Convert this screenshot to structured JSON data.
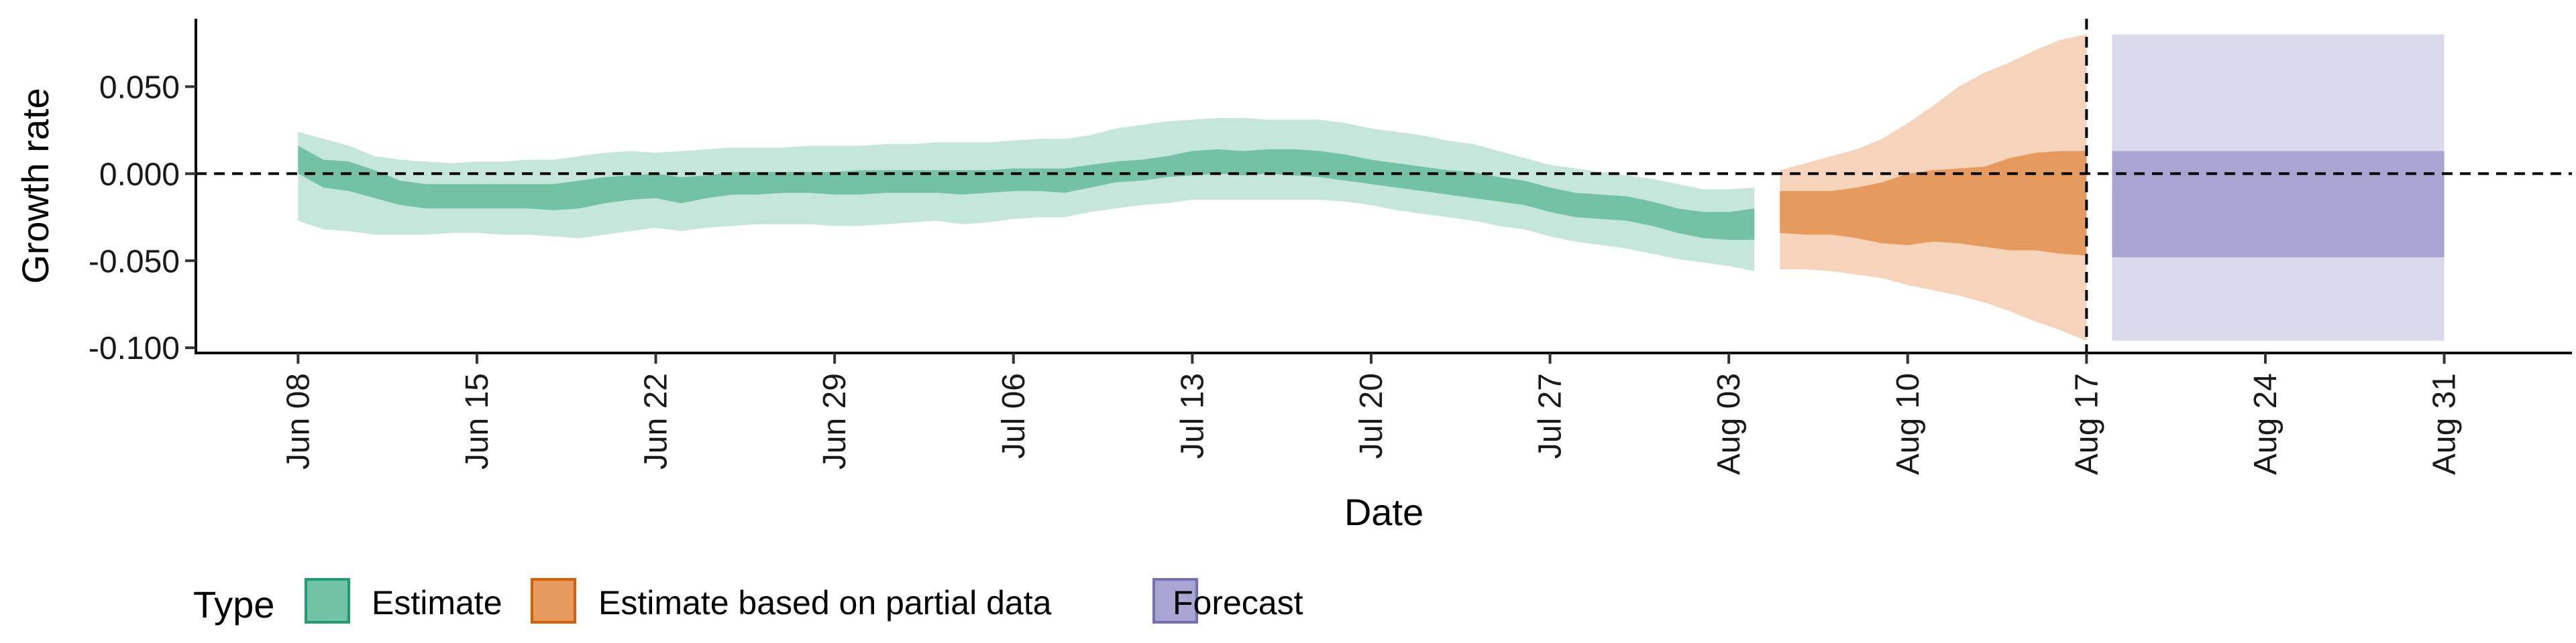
{
  "chart_data": {
    "type": "area",
    "xlabel": "Date",
    "ylabel": "Growth rate",
    "x_ticks": [
      "Jun 08",
      "Jun 15",
      "Jun 22",
      "Jun 29",
      "Jul 06",
      "Jul 13",
      "Jul 20",
      "Jul 27",
      "Aug 03",
      "Aug 10",
      "Aug 17",
      "Aug 24",
      "Aug 31"
    ],
    "x_tick_dates": [
      "2020-06-08",
      "2020-06-15",
      "2020-06-22",
      "2020-06-29",
      "2020-07-06",
      "2020-07-13",
      "2020-07-20",
      "2020-07-27",
      "2020-08-03",
      "2020-08-10",
      "2020-08-17",
      "2020-08-24",
      "2020-08-31"
    ],
    "y_ticks": [
      "-0.100",
      "-0.050",
      "0.000",
      "0.050"
    ],
    "y_tick_values": [
      -0.1,
      -0.05,
      0.0,
      0.05
    ],
    "ylim": [
      -0.103,
      0.089
    ],
    "xlim": [
      "2020-06-04",
      "2020-09-05"
    ],
    "reference_lines": {
      "horizontal_y": 0.0,
      "vertical_date": "2020-08-17",
      "style": "dashed"
    },
    "grid": false,
    "legend": {
      "title": "Type",
      "position": "bottom-left",
      "entries": [
        {
          "label": "Estimate",
          "fill": "#73c2a5",
          "border": "#1b9e77"
        },
        {
          "label": "Estimate based on partial data",
          "fill": "#e79a5d",
          "border": "#d95f02"
        },
        {
          "label": "Forecast",
          "fill": "#a8a5d2",
          "border": "#7570b3"
        }
      ]
    },
    "series": [
      {
        "name": "Estimate",
        "color_inner": "#73c2a5",
        "color_outer": "#c5e6da",
        "dates": [
          "2020-06-08",
          "2020-06-09",
          "2020-06-10",
          "2020-06-11",
          "2020-06-12",
          "2020-06-13",
          "2020-06-14",
          "2020-06-15",
          "2020-06-16",
          "2020-06-17",
          "2020-06-18",
          "2020-06-19",
          "2020-06-20",
          "2020-06-21",
          "2020-06-22",
          "2020-06-23",
          "2020-06-24",
          "2020-06-25",
          "2020-06-26",
          "2020-06-27",
          "2020-06-28",
          "2020-06-29",
          "2020-06-30",
          "2020-07-01",
          "2020-07-02",
          "2020-07-03",
          "2020-07-04",
          "2020-07-05",
          "2020-07-06",
          "2020-07-07",
          "2020-07-08",
          "2020-07-09",
          "2020-07-10",
          "2020-07-11",
          "2020-07-12",
          "2020-07-13",
          "2020-07-14",
          "2020-07-15",
          "2020-07-16",
          "2020-07-17",
          "2020-07-18",
          "2020-07-19",
          "2020-07-20",
          "2020-07-21",
          "2020-07-22",
          "2020-07-23",
          "2020-07-24",
          "2020-07-25",
          "2020-07-26",
          "2020-07-27",
          "2020-07-28",
          "2020-07-29",
          "2020-07-30",
          "2020-07-31",
          "2020-08-01",
          "2020-08-02",
          "2020-08-03",
          "2020-08-04"
        ],
        "lower_90": [
          -0.027,
          -0.032,
          -0.033,
          -0.035,
          -0.035,
          -0.035,
          -0.034,
          -0.034,
          -0.035,
          -0.035,
          -0.036,
          -0.037,
          -0.035,
          -0.033,
          -0.031,
          -0.033,
          -0.031,
          -0.03,
          -0.029,
          -0.029,
          -0.029,
          -0.03,
          -0.03,
          -0.029,
          -0.028,
          -0.027,
          -0.029,
          -0.028,
          -0.026,
          -0.025,
          -0.025,
          -0.022,
          -0.02,
          -0.018,
          -0.017,
          -0.015,
          -0.015,
          -0.015,
          -0.015,
          -0.015,
          -0.015,
          -0.016,
          -0.018,
          -0.021,
          -0.023,
          -0.025,
          -0.027,
          -0.03,
          -0.032,
          -0.036,
          -0.039,
          -0.041,
          -0.043,
          -0.046,
          -0.049,
          -0.051,
          -0.053,
          -0.056
        ],
        "lower_50": [
          0.0,
          -0.008,
          -0.01,
          -0.014,
          -0.018,
          -0.02,
          -0.02,
          -0.02,
          -0.02,
          -0.02,
          -0.021,
          -0.02,
          -0.017,
          -0.015,
          -0.014,
          -0.017,
          -0.014,
          -0.012,
          -0.012,
          -0.011,
          -0.011,
          -0.012,
          -0.012,
          -0.011,
          -0.011,
          -0.011,
          -0.012,
          -0.011,
          -0.01,
          -0.01,
          -0.011,
          -0.008,
          -0.005,
          -0.004,
          -0.002,
          -0.001,
          0.0,
          -0.001,
          0.0,
          -0.001,
          -0.002,
          -0.004,
          -0.006,
          -0.008,
          -0.01,
          -0.012,
          -0.014,
          -0.016,
          -0.018,
          -0.022,
          -0.025,
          -0.026,
          -0.027,
          -0.03,
          -0.034,
          -0.037,
          -0.038,
          -0.038
        ],
        "upper_50": [
          0.016,
          0.008,
          0.007,
          0.002,
          -0.004,
          -0.006,
          -0.006,
          -0.006,
          -0.006,
          -0.006,
          -0.006,
          -0.004,
          -0.002,
          -0.001,
          0.0,
          -0.002,
          -0.001,
          0.001,
          0.001,
          0.001,
          0.001,
          0.001,
          0.002,
          0.002,
          0.002,
          0.002,
          0.002,
          0.002,
          0.003,
          0.003,
          0.003,
          0.005,
          0.007,
          0.008,
          0.01,
          0.013,
          0.014,
          0.013,
          0.014,
          0.014,
          0.013,
          0.011,
          0.008,
          0.006,
          0.004,
          0.002,
          0.001,
          -0.002,
          -0.004,
          -0.008,
          -0.011,
          -0.012,
          -0.013,
          -0.016,
          -0.02,
          -0.022,
          -0.022,
          -0.02
        ],
        "upper_90": [
          0.024,
          0.02,
          0.016,
          0.01,
          0.008,
          0.007,
          0.006,
          0.007,
          0.007,
          0.008,
          0.008,
          0.01,
          0.012,
          0.013,
          0.012,
          0.013,
          0.014,
          0.015,
          0.015,
          0.015,
          0.016,
          0.016,
          0.016,
          0.017,
          0.017,
          0.018,
          0.018,
          0.018,
          0.019,
          0.02,
          0.02,
          0.022,
          0.026,
          0.028,
          0.03,
          0.031,
          0.032,
          0.032,
          0.031,
          0.031,
          0.031,
          0.029,
          0.026,
          0.024,
          0.022,
          0.019,
          0.017,
          0.013,
          0.009,
          0.005,
          0.003,
          0.001,
          -0.001,
          -0.003,
          -0.006,
          -0.009,
          -0.009,
          -0.008
        ]
      },
      {
        "name": "Estimate based on partial data",
        "color_inner": "#e79a5d",
        "color_outer": "#f6d4bc",
        "dates": [
          "2020-08-05",
          "2020-08-06",
          "2020-08-07",
          "2020-08-08",
          "2020-08-09",
          "2020-08-10",
          "2020-08-11",
          "2020-08-12",
          "2020-08-13",
          "2020-08-14",
          "2020-08-15",
          "2020-08-16",
          "2020-08-17"
        ],
        "lower_90": [
          -0.055,
          -0.055,
          -0.056,
          -0.058,
          -0.06,
          -0.064,
          -0.067,
          -0.07,
          -0.074,
          -0.079,
          -0.085,
          -0.09,
          -0.096
        ],
        "lower_50": [
          -0.034,
          -0.035,
          -0.035,
          -0.037,
          -0.04,
          -0.041,
          -0.039,
          -0.04,
          -0.042,
          -0.044,
          -0.044,
          -0.046,
          -0.047
        ],
        "upper_50": [
          -0.01,
          -0.01,
          -0.01,
          -0.008,
          -0.005,
          0.0,
          0.002,
          0.003,
          0.004,
          0.009,
          0.012,
          0.013,
          0.013
        ],
        "upper_90": [
          0.002,
          0.006,
          0.01,
          0.014,
          0.02,
          0.029,
          0.039,
          0.05,
          0.058,
          0.064,
          0.071,
          0.077,
          0.08
        ]
      },
      {
        "name": "Forecast",
        "color_inner": "#a8a5d2",
        "color_outer": "#dbdaec",
        "dates": [
          "2020-08-18",
          "2020-08-31"
        ],
        "lower_90": [
          -0.096,
          -0.096
        ],
        "lower_50": [
          -0.048,
          -0.048
        ],
        "upper_50": [
          0.013,
          0.013
        ],
        "upper_90": [
          0.08,
          0.08
        ]
      }
    ]
  }
}
